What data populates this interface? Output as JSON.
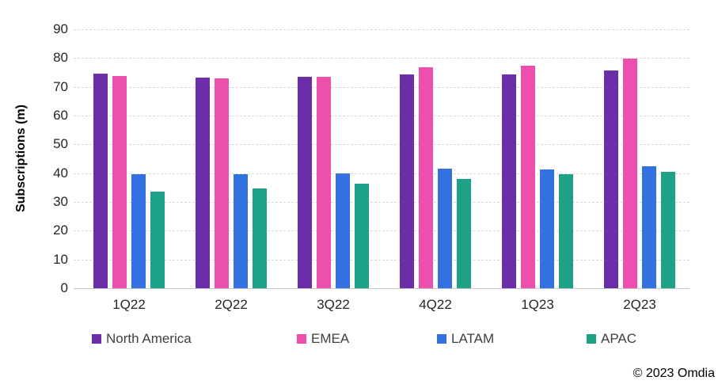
{
  "chart_data": {
    "type": "bar",
    "title": "",
    "xlabel": "",
    "ylabel": "Subscriptions (m)",
    "ylim": [
      0,
      90
    ],
    "ytick_interval": 10,
    "grid": true,
    "legend_position": "bottom",
    "categories": [
      "1Q22",
      "2Q22",
      "3Q22",
      "4Q22",
      "1Q23",
      "2Q23"
    ],
    "series": [
      {
        "name": "North America",
        "color": "#6B2DA8",
        "values": [
          74.6,
          73.3,
          73.4,
          74.3,
          74.4,
          75.6
        ]
      },
      {
        "name": "EMEA",
        "color": "#EC4FAD",
        "values": [
          73.7,
          73.0,
          73.5,
          76.7,
          77.4,
          79.8
        ]
      },
      {
        "name": "LATAM",
        "color": "#3370E0",
        "values": [
          39.6,
          39.6,
          39.9,
          41.7,
          41.2,
          42.5
        ]
      },
      {
        "name": "APAC",
        "color": "#1EA287",
        "values": [
          33.7,
          34.8,
          36.2,
          38.0,
          39.5,
          40.6
        ]
      }
    ]
  },
  "colors": {
    "gridline": "#D9D9D9",
    "axis_line": "#C9C9C9",
    "tick_text": "#262626",
    "legend_text": "#3F3F3F"
  },
  "footer": {
    "copyright": "© 2023 Omdia"
  }
}
